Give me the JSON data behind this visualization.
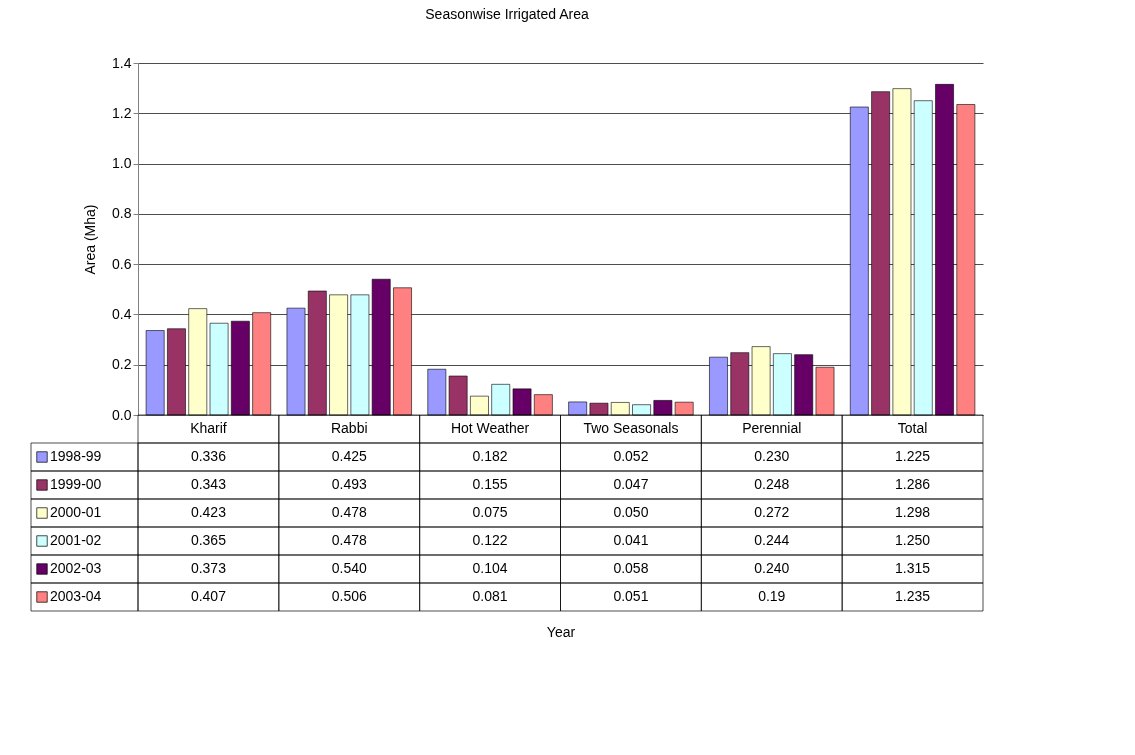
{
  "chart_data": {
    "type": "bar",
    "title": "Seasonwise Irrigated Area",
    "annotations": [
      "Year"
    ],
    "ylabel": "Area (Mha)",
    "categories": [
      "Kharif",
      "Rabbi",
      "Hot Weather",
      "Two Seasonals",
      "Perennial",
      "Total"
    ],
    "series": [
      {
        "name": "1998-99",
        "color": "#9999ff",
        "values": [
          0.336,
          0.425,
          0.182,
          0.052,
          0.23,
          1.225
        ],
        "value_labels": [
          "0.336",
          "0.425",
          "0.182",
          "0.052",
          "0.230",
          "1.225"
        ]
      },
      {
        "name": "1999-00",
        "color": "#993366",
        "values": [
          0.343,
          0.493,
          0.155,
          0.047,
          0.248,
          1.286
        ],
        "value_labels": [
          "0.343",
          "0.493",
          "0.155",
          "0.047",
          "0.248",
          "1.286"
        ]
      },
      {
        "name": "2000-01",
        "color": "#ffffcc",
        "values": [
          0.423,
          0.478,
          0.075,
          0.05,
          0.272,
          1.298
        ],
        "value_labels": [
          "0.423",
          "0.478",
          "0.075",
          "0.050",
          "0.272",
          "1.298"
        ]
      },
      {
        "name": "2001-02",
        "color": "#ccffff",
        "values": [
          0.365,
          0.478,
          0.122,
          0.041,
          0.244,
          1.25
        ],
        "value_labels": [
          "0.365",
          "0.478",
          "0.122",
          "0.041",
          "0.244",
          "1.250"
        ]
      },
      {
        "name": "2002-03",
        "color": "#660066",
        "values": [
          0.373,
          0.54,
          0.104,
          0.058,
          0.24,
          1.315
        ],
        "value_labels": [
          "0.373",
          "0.540",
          "0.104",
          "0.058",
          "0.240",
          "1.315"
        ]
      },
      {
        "name": "2003-04",
        "color": "#ff8080",
        "values": [
          0.407,
          0.506,
          0.081,
          0.051,
          0.19,
          1.235
        ],
        "value_labels": [
          "0.407",
          "0.506",
          "0.081",
          "0.051",
          "0.19",
          "1.235"
        ]
      }
    ],
    "ylim": [
      0,
      1.4
    ],
    "yticks": [
      {
        "value": 0,
        "label": "0.0"
      },
      0.2,
      0.4,
      0.6,
      0.8,
      {
        "value": 1,
        "label": "1.0"
      },
      1.2,
      1.4
    ],
    "grid": "y",
    "legend": "left"
  }
}
